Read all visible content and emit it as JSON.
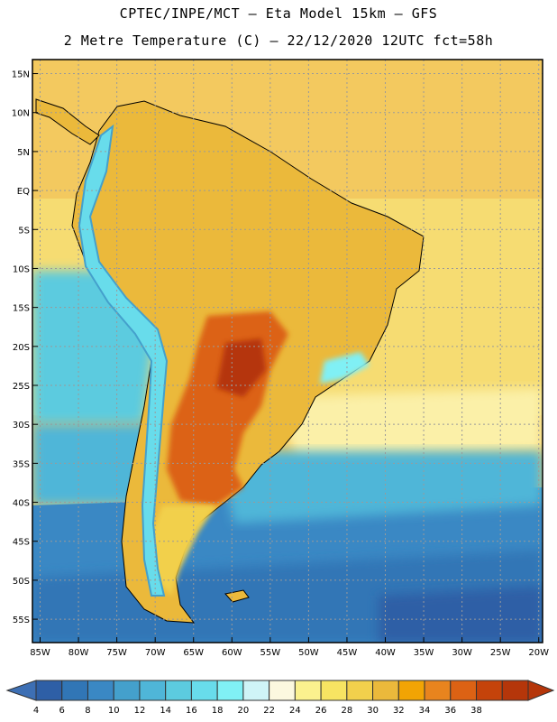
{
  "header": {
    "line1": "CPTEC/INPE/MCT –  Eta Model 15km – GFS",
    "line2": "2 Metre Temperature (C) – 22/12/2020 12UTC fct=58h"
  },
  "axes": {
    "lat_labels": [
      "15N",
      "10N",
      "5N",
      "EQ",
      "5S",
      "10S",
      "15S",
      "20S",
      "25S",
      "30S",
      "35S",
      "40S",
      "45S",
      "50S",
      "55S"
    ],
    "lon_labels": [
      "85W",
      "80W",
      "75W",
      "70W",
      "65W",
      "60W",
      "55W",
      "50W",
      "45W",
      "40W",
      "35W",
      "30W",
      "25W",
      "20W"
    ]
  },
  "legend": {
    "values": [
      "4",
      "6",
      "8",
      "10",
      "12",
      "14",
      "16",
      "18",
      "20",
      "22",
      "24",
      "26",
      "28",
      "30",
      "32",
      "34",
      "36",
      "38"
    ],
    "colors": [
      "#2e5fa6",
      "#3176b6",
      "#3a88c4",
      "#44a0cc",
      "#4fb6d8",
      "#5ccbdf",
      "#68dceb",
      "#80f0f5",
      "#cff4f7",
      "#fcf8df",
      "#fbf18e",
      "#f7e462",
      "#f2d04c",
      "#ebb93b",
      "#f2a404",
      "#e8841e",
      "#dc6214",
      "#c5430a",
      "#b5360a"
    ],
    "low_arrow_color": "#3d6fb4",
    "high_arrow_color": "#b5360a"
  },
  "map": {
    "extent_lon": [
      -86,
      -19.5
    ],
    "extent_lat": [
      -58,
      16.8
    ],
    "regions": {
      "north_ocean": "#f3c95f",
      "central_ocean": "#f6dc72",
      "subtropical_ocean": "#fbf0a8",
      "atlantic_cool": "#4fb6d8",
      "southern_ocean": "#3a88c4",
      "deep_south": "#2e5fa6",
      "pacific_coast": "#5ccbdf",
      "land_warm": "#ebb93b",
      "land_hot": "#dc6214",
      "land_very_hot": "#b5360a",
      "andes_cold": "#68dceb",
      "andes_high": "#44a0cc",
      "patagonia": "#f2d04c"
    }
  }
}
